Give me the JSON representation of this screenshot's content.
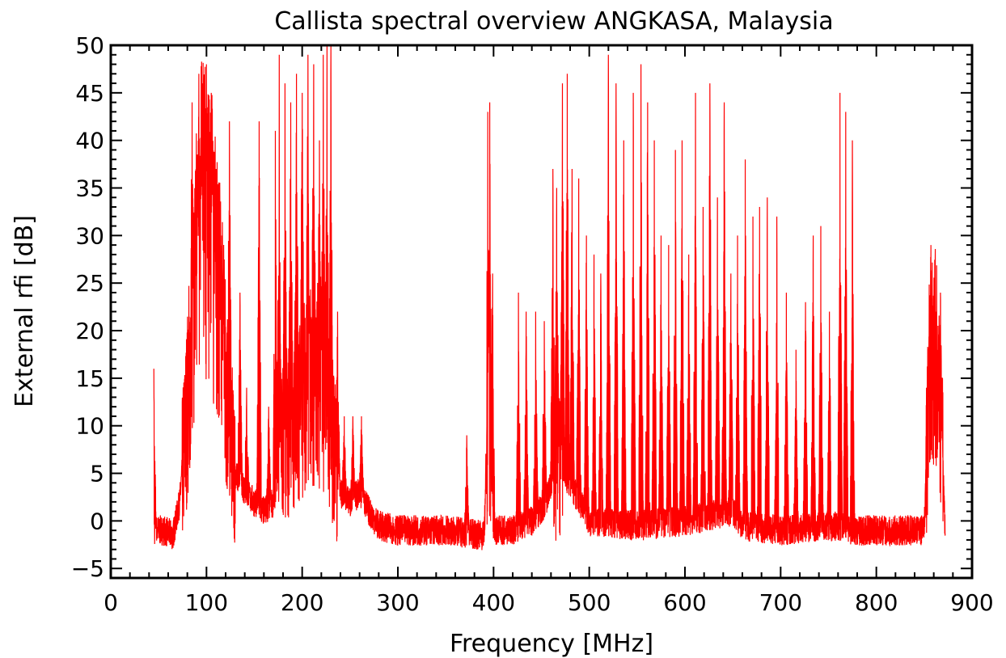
{
  "chart_data": {
    "type": "line",
    "title": "Callista spectral overview ANGKASA, Malaysia",
    "xlabel": "Frequency [MHz]",
    "ylabel": "External rfi [dB]",
    "xlim": [
      0,
      900
    ],
    "ylim": [
      -6,
      50
    ],
    "x_ticks": [
      0,
      100,
      200,
      300,
      400,
      500,
      600,
      700,
      800,
      900
    ],
    "y_ticks": [
      -5,
      0,
      5,
      10,
      15,
      20,
      25,
      30,
      35,
      40,
      45,
      50
    ],
    "grid": false,
    "series": [
      {
        "color": "#ff0000",
        "baseline": [
          [
            45,
            -1
          ],
          [
            55,
            -1
          ],
          [
            65,
            -1.5
          ],
          [
            72,
            2
          ],
          [
            80,
            12
          ],
          [
            88,
            25
          ],
          [
            95,
            32
          ],
          [
            105,
            30
          ],
          [
            115,
            22
          ],
          [
            122,
            12
          ],
          [
            130,
            5
          ],
          [
            140,
            3
          ],
          [
            150,
            2
          ],
          [
            160,
            1
          ],
          [
            170,
            2
          ],
          [
            180,
            8
          ],
          [
            190,
            10
          ],
          [
            200,
            12
          ],
          [
            210,
            15
          ],
          [
            220,
            14
          ],
          [
            230,
            10
          ],
          [
            240,
            3
          ],
          [
            250,
            2
          ],
          [
            260,
            3
          ],
          [
            270,
            1
          ],
          [
            280,
            -0.5
          ],
          [
            300,
            -1
          ],
          [
            350,
            -1
          ],
          [
            390,
            -1.5
          ],
          [
            395,
            10
          ],
          [
            400,
            -1
          ],
          [
            420,
            -1
          ],
          [
            440,
            0
          ],
          [
            455,
            2
          ],
          [
            465,
            6
          ],
          [
            480,
            4
          ],
          [
            500,
            0
          ],
          [
            550,
            -0.5
          ],
          [
            600,
            0
          ],
          [
            650,
            1
          ],
          [
            660,
            -0.5
          ],
          [
            700,
            -1
          ],
          [
            750,
            -0.5
          ],
          [
            780,
            -1
          ],
          [
            850,
            -1
          ],
          [
            855,
            15
          ],
          [
            862,
            17
          ],
          [
            868,
            10
          ],
          [
            872,
            -1.5
          ]
        ],
        "peaks": [
          [
            45,
            16
          ],
          [
            85,
            44
          ],
          [
            92,
            47
          ],
          [
            96,
            46
          ],
          [
            100,
            48
          ],
          [
            105,
            45
          ],
          [
            110,
            37
          ],
          [
            116,
            30
          ],
          [
            124,
            42
          ],
          [
            135,
            24
          ],
          [
            142,
            14
          ],
          [
            155,
            42
          ],
          [
            165,
            12
          ],
          [
            172,
            41
          ],
          [
            176,
            49
          ],
          [
            182,
            46
          ],
          [
            188,
            44
          ],
          [
            194,
            47
          ],
          [
            200,
            45
          ],
          [
            206,
            49
          ],
          [
            212,
            48
          ],
          [
            218,
            40
          ],
          [
            222,
            49
          ],
          [
            226,
            50
          ],
          [
            230,
            50
          ],
          [
            237,
            22
          ],
          [
            244,
            11
          ],
          [
            253,
            11
          ],
          [
            262,
            11
          ],
          [
            372,
            9
          ],
          [
            394,
            43
          ],
          [
            396,
            44
          ],
          [
            399,
            26
          ],
          [
            426,
            24
          ],
          [
            434,
            22
          ],
          [
            444,
            22
          ],
          [
            453,
            21
          ],
          [
            462,
            37
          ],
          [
            466,
            35
          ],
          [
            472,
            46
          ],
          [
            477,
            47
          ],
          [
            482,
            37
          ],
          [
            489,
            36
          ],
          [
            497,
            30
          ],
          [
            505,
            28
          ],
          [
            512,
            26
          ],
          [
            520,
            49
          ],
          [
            528,
            46
          ],
          [
            536,
            40
          ],
          [
            546,
            45
          ],
          [
            554,
            48
          ],
          [
            561,
            44
          ],
          [
            568,
            40
          ],
          [
            575,
            30
          ],
          [
            583,
            29
          ],
          [
            590,
            39
          ],
          [
            597,
            40
          ],
          [
            604,
            28
          ],
          [
            611,
            45
          ],
          [
            619,
            33
          ],
          [
            626,
            46
          ],
          [
            634,
            34
          ],
          [
            641,
            44
          ],
          [
            648,
            26
          ],
          [
            655,
            30
          ],
          [
            663,
            38
          ],
          [
            671,
            32
          ],
          [
            678,
            33
          ],
          [
            686,
            34
          ],
          [
            696,
            32
          ],
          [
            706,
            24
          ],
          [
            716,
            18
          ],
          [
            726,
            23
          ],
          [
            734,
            30
          ],
          [
            742,
            31
          ],
          [
            751,
            22
          ],
          [
            762,
            45
          ],
          [
            768,
            43
          ],
          [
            775,
            40
          ],
          [
            857,
            29
          ],
          [
            862,
            22
          ],
          [
            867,
            24
          ]
        ]
      }
    ]
  }
}
